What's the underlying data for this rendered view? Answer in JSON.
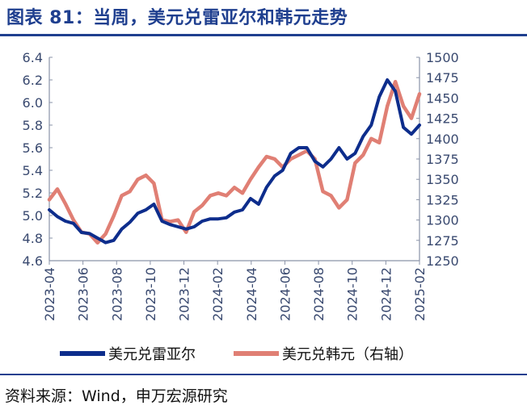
{
  "header": {
    "title": "图表 81：当周，美元兑雷亚尔和韩元走势"
  },
  "footer": {
    "source": "资料来源：Wind，申万宏源研究"
  },
  "colors": {
    "title": "#1f3f8f",
    "brl_series": "#0d2d8c",
    "krw_series": "#e07f74",
    "axis": "#8a93a8",
    "tick_text": "#3a4a70"
  },
  "chart_data": {
    "type": "line",
    "title": "当周，美元兑雷亚尔和韩元走势",
    "x_tick_labels": [
      "2023-04",
      "2023-06",
      "2023-08",
      "2023-10",
      "2023-12",
      "2024-02",
      "2024-04",
      "2024-06",
      "2024-08",
      "2024-10",
      "2024-12",
      "2025-02"
    ],
    "x_range": [
      0,
      23
    ],
    "left_axis": {
      "label": "",
      "range": [
        4.6,
        6.4
      ],
      "ticks": [
        "4.6",
        "4.8",
        "5.0",
        "5.2",
        "5.4",
        "5.6",
        "5.8",
        "6.0",
        "6.2",
        "6.4"
      ]
    },
    "right_axis": {
      "label": "",
      "range": [
        1250,
        1500
      ],
      "ticks": [
        "1250",
        "1275",
        "1300",
        "1325",
        "1350",
        "1375",
        "1400",
        "1425",
        "1450",
        "1475",
        "1500"
      ]
    },
    "series": [
      {
        "name": "美元兑雷亚尔",
        "axis": "left",
        "color_key": "brl_series",
        "x": [
          0,
          0.5,
          1,
          1.5,
          2,
          2.5,
          3,
          3.5,
          4,
          4.5,
          5,
          5.5,
          6,
          6.5,
          7,
          7.5,
          8,
          8.5,
          9,
          9.5,
          10,
          10.5,
          11,
          11.5,
          12,
          12.5,
          13,
          13.5,
          14,
          14.5,
          15,
          15.5,
          16,
          16.5,
          17,
          17.5,
          18,
          18.5,
          19,
          19.5,
          20,
          20.5,
          21,
          21.5,
          22,
          22.5,
          23
        ],
        "values": [
          5.05,
          4.99,
          4.95,
          4.93,
          4.85,
          4.84,
          4.8,
          4.76,
          4.78,
          4.88,
          4.94,
          5.02,
          5.05,
          5.1,
          4.95,
          4.92,
          4.9,
          4.88,
          4.9,
          4.95,
          4.97,
          4.97,
          4.98,
          5.03,
          5.05,
          5.15,
          5.1,
          5.25,
          5.35,
          5.4,
          5.55,
          5.6,
          5.6,
          5.48,
          5.43,
          5.5,
          5.6,
          5.5,
          5.55,
          5.7,
          5.8,
          6.05,
          6.2,
          6.1,
          5.78,
          5.72,
          5.8
        ]
      },
      {
        "name": "美元兑韩元（右轴）",
        "axis": "right",
        "color_key": "krw_series",
        "x": [
          0,
          0.5,
          1,
          1.5,
          2,
          2.5,
          3,
          3.5,
          4,
          4.5,
          5,
          5.5,
          6,
          6.5,
          7,
          7.5,
          8,
          8.5,
          9,
          9.5,
          10,
          10.5,
          11,
          11.5,
          12,
          12.5,
          13,
          13.5,
          14,
          14.5,
          15,
          15.5,
          16,
          16.5,
          17,
          17.5,
          18,
          18.5,
          19,
          19.5,
          20,
          20.5,
          21,
          21.5,
          22,
          22.5,
          23
        ],
        "values": [
          1325,
          1338,
          1320,
          1300,
          1285,
          1283,
          1272,
          1283,
          1305,
          1330,
          1335,
          1350,
          1355,
          1345,
          1300,
          1298,
          1300,
          1285,
          1310,
          1318,
          1330,
          1333,
          1330,
          1340,
          1333,
          1350,
          1365,
          1378,
          1375,
          1365,
          1375,
          1380,
          1385,
          1375,
          1335,
          1330,
          1315,
          1325,
          1370,
          1380,
          1400,
          1395,
          1440,
          1470,
          1440,
          1425,
          1455
        ]
      }
    ],
    "legend": {
      "position": "bottom",
      "entries": [
        "美元兑雷亚尔",
        "美元兑韩元（右轴）"
      ]
    }
  }
}
